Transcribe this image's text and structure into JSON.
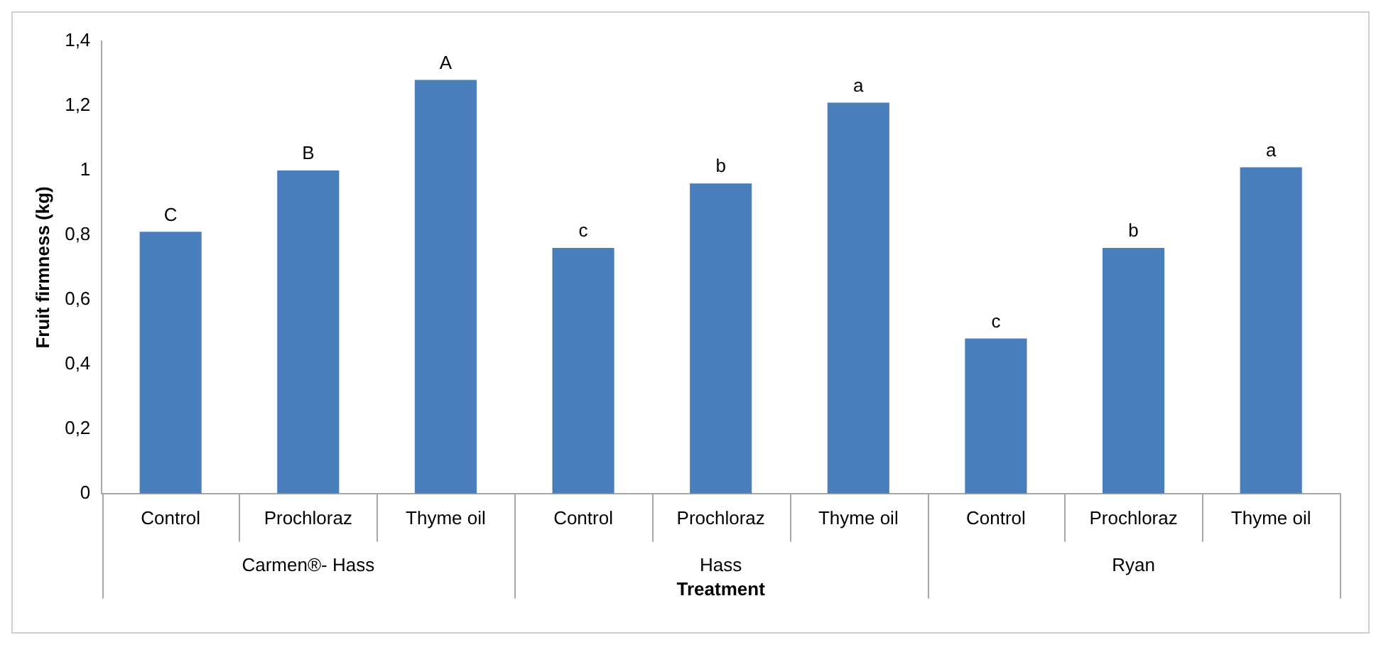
{
  "chart_data": {
    "type": "bar",
    "xlabel": "Treatment",
    "ylabel": "Fruit firmness (kg)",
    "categories": [
      "Control",
      "Prochloraz",
      "Thyme oil",
      "Control",
      "Prochloraz",
      "Thyme oil",
      "Control",
      "Prochloraz",
      "Thyme oil"
    ],
    "values": [
      0.81,
      1.0,
      1.28,
      0.76,
      0.96,
      1.21,
      0.48,
      0.76,
      1.01
    ],
    "value_labels": [
      "C",
      "B",
      "A",
      "c",
      "b",
      "a",
      "c",
      "b",
      "a"
    ],
    "color": "#4a7ebb",
    "ylim": [
      0,
      1.4
    ],
    "yticks": [
      0,
      {
        "value": 0.2,
        "label": "0,2"
      },
      {
        "value": 0.4,
        "label": "0,4"
      },
      {
        "value": 0.6,
        "label": "0,6"
      },
      {
        "value": 0.8,
        "label": "0,8"
      },
      1,
      {
        "value": 1.2,
        "label": "1,2"
      },
      {
        "value": 1.4,
        "label": "1,4"
      }
    ],
    "grid": false,
    "annotations": [
      "Carmen®- Hass",
      "Hass",
      "Ryan"
    ]
  }
}
